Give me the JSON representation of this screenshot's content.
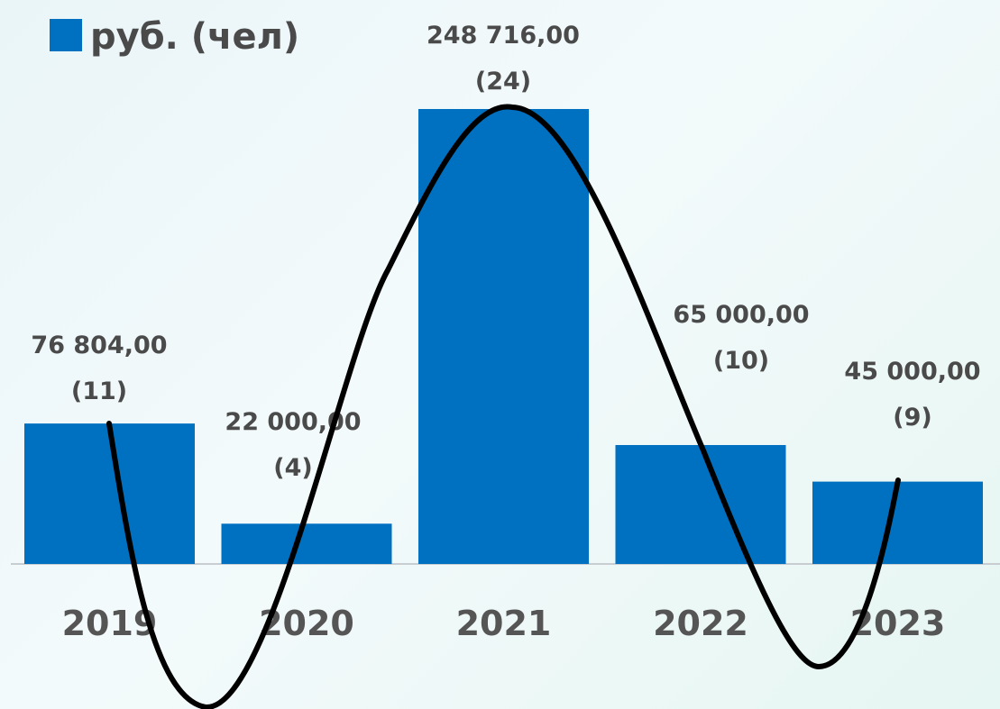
{
  "chart_data": {
    "type": "bar",
    "categories": [
      "2019",
      "2020",
      "2021",
      "2022",
      "2023"
    ],
    "series": [
      {
        "name": "руб. (чел)",
        "values": [
          76804,
          22000,
          248716,
          65000,
          45000
        ],
        "counts": [
          11,
          4,
          24,
          10,
          9
        ],
        "value_labels": [
          "76 804,00",
          "22 000,00",
          "248 716,00",
          "65 000,00",
          "45 000,00"
        ],
        "count_labels": [
          "(11)",
          "(4)",
          "(24)",
          "(10)",
          "(9)"
        ]
      }
    ],
    "ylim": [
      0,
      250000
    ],
    "legend": "top-left",
    "grid": false,
    "colors": {
      "bar": "#0070c0",
      "curve": "#000000",
      "baseline": "#c8cdd2"
    }
  }
}
